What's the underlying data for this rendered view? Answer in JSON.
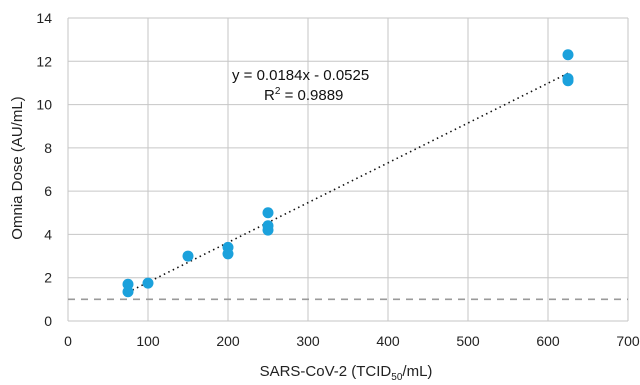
{
  "chart_data": {
    "type": "scatter",
    "title": "",
    "xlabel": "SARS-CoV-2 (TCID",
    "xlabel_subscript": "50",
    "xlabel_suffix": "/mL)",
    "ylabel": "Omnia Dose (AU/mL)",
    "xlim": [
      0,
      700
    ],
    "ylim": [
      0,
      14
    ],
    "x_ticks": [
      0,
      100,
      200,
      300,
      400,
      500,
      600,
      700
    ],
    "y_ticks": [
      0,
      2,
      4,
      6,
      8,
      10,
      12,
      14
    ],
    "grid": true,
    "legend": "none",
    "series": [
      {
        "points": [
          {
            "x": 75,
            "y": 1.7
          },
          {
            "x": 75,
            "y": 1.35
          },
          {
            "x": 100,
            "y": 1.75
          },
          {
            "x": 150,
            "y": 3.0
          },
          {
            "x": 200,
            "y": 3.4
          },
          {
            "x": 200,
            "y": 3.1
          },
          {
            "x": 250,
            "y": 5.0
          },
          {
            "x": 250,
            "y": 4.4
          },
          {
            "x": 250,
            "y": 4.2
          },
          {
            "x": 625,
            "y": 12.3
          },
          {
            "x": 625,
            "y": 11.2
          },
          {
            "x": 625,
            "y": 11.1
          }
        ]
      }
    ],
    "trendline": {
      "slope": 0.0184,
      "intercept": -0.0525,
      "x_range": [
        75,
        625
      ],
      "equation_line1": "y = 0.0184x - 0.0525",
      "r2_prefix": "R",
      "r2_sup": "2",
      "r2_suffix": " = 0.9889"
    },
    "threshold": {
      "y": 1.0,
      "style": "dashed"
    },
    "colors": {
      "points": "#1ba1dc",
      "grid": "#c6c6c6",
      "trendline": "#111111",
      "threshold": "#9a9a9a"
    }
  }
}
